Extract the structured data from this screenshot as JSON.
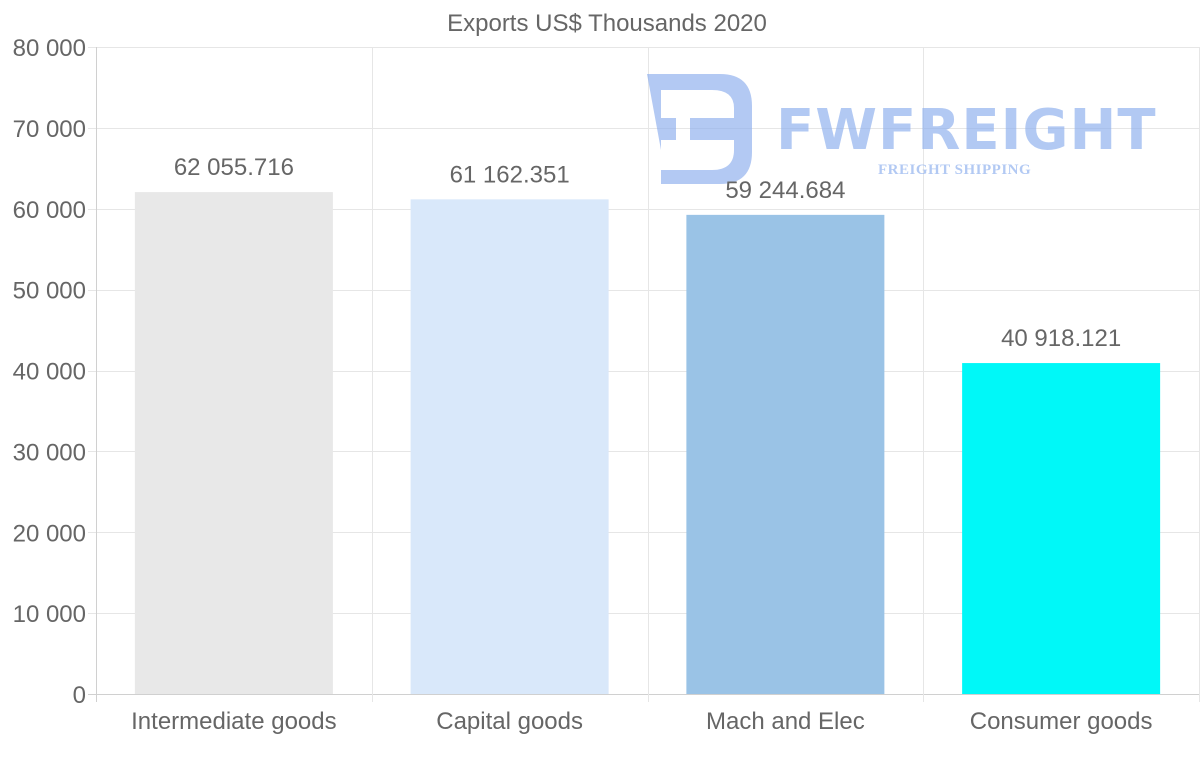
{
  "chart_data": {
    "type": "bar",
    "title": "Exports US$ Thousands 2020",
    "categories": [
      "Intermediate goods",
      "Capital goods",
      "Mach and Elec",
      "Consumer goods"
    ],
    "values": [
      62055.716,
      61162.351,
      59244.684,
      40918.121
    ],
    "value_labels": [
      "62 055.716",
      "61 162.351",
      "59 244.684",
      "40 918.121"
    ],
    "bar_colors": [
      "#e8e8e8",
      "#d9e8fa",
      "#9ac3e6",
      "#00f8f8"
    ],
    "y_ticks": [
      0,
      10000,
      20000,
      30000,
      40000,
      50000,
      60000,
      70000,
      80000
    ],
    "y_tick_labels": [
      "0",
      "10 000",
      "20 000",
      "30 000",
      "40 000",
      "50 000",
      "60 000",
      "70 000",
      "80 000"
    ],
    "ylim": [
      0,
      80000
    ],
    "xlabel": "",
    "ylabel": "",
    "grid": true,
    "legend": "none"
  },
  "watermark": {
    "brand": "FWFREIGHT",
    "tagline": "FREIGHT SHIPPING",
    "color": "#8fb0ee"
  }
}
